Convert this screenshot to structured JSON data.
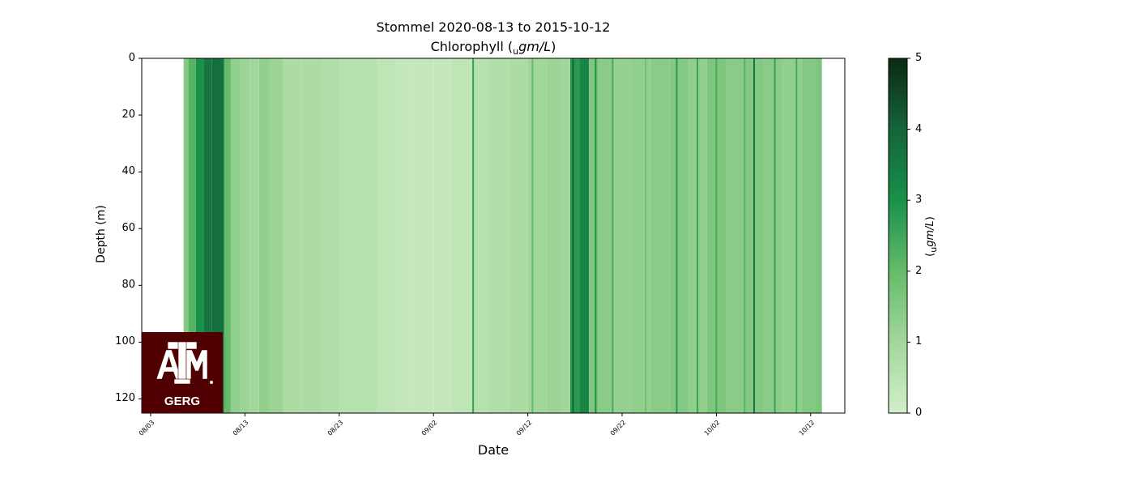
{
  "chart_data": {
    "type": "heatmap",
    "title_line1": "Stommel 2020-08-13 to 2015-10-12",
    "title_line2_prefix": "Chlorophyll (",
    "title_line2_sub": "u",
    "title_line2_unit": "gm/L",
    "title_line2_suffix": ")",
    "xlabel": "Date",
    "ylabel": "Depth (m)",
    "x_tick_labels": [
      "08/03",
      "08/13",
      "08/23",
      "09/02",
      "09/12",
      "09/22",
      "10/02",
      "10/12"
    ],
    "ylim": [
      125,
      0
    ],
    "y_ticks": [
      0,
      20,
      40,
      60,
      80,
      100,
      120
    ],
    "colorbar": {
      "label_prefix": "(",
      "label_sub": "u",
      "label_unit": "gm/L",
      "label_suffix": ")",
      "range": [
        0,
        5
      ],
      "ticks": [
        0,
        1,
        2,
        3,
        4,
        5
      ],
      "colormap": "Greens",
      "low_color": "#c7e9c0",
      "high_color": "#0b2a12"
    },
    "data_start_day": 3.5,
    "data_end_day": 71.2,
    "column_values": [
      {
        "day": 3.5,
        "v": 1.5
      },
      {
        "day": 4.0,
        "v": 2.2
      },
      {
        "day": 4.8,
        "v": 3.0
      },
      {
        "day": 5.6,
        "v": 3.6
      },
      {
        "day": 6.5,
        "v": 3.8
      },
      {
        "day": 7.3,
        "v": 3.7
      },
      {
        "day": 7.8,
        "v": 2.0
      },
      {
        "day": 8.5,
        "v": 1.3
      },
      {
        "day": 9.5,
        "v": 1.1
      },
      {
        "day": 10.5,
        "v": 1.0
      },
      {
        "day": 11.5,
        "v": 1.3
      },
      {
        "day": 12.5,
        "v": 1.1
      },
      {
        "day": 14,
        "v": 0.8
      },
      {
        "day": 16,
        "v": 0.8
      },
      {
        "day": 18,
        "v": 0.7
      },
      {
        "day": 20,
        "v": 0.6
      },
      {
        "day": 22,
        "v": 0.6
      },
      {
        "day": 24,
        "v": 0.4
      },
      {
        "day": 26,
        "v": 0.3
      },
      {
        "day": 28,
        "v": 0.3
      },
      {
        "day": 30,
        "v": 0.3
      },
      {
        "day": 32,
        "v": 0.4
      },
      {
        "day": 34,
        "v": 0.6
      },
      {
        "day": 36,
        "v": 0.7
      },
      {
        "day": 38,
        "v": 0.8
      },
      {
        "day": 40,
        "v": 1.0
      },
      {
        "day": 42,
        "v": 1.1
      },
      {
        "day": 43.5,
        "v": 1.0
      },
      {
        "day": 44.5,
        "v": 2.8
      },
      {
        "day": 45.5,
        "v": 3.3
      },
      {
        "day": 46.5,
        "v": 1.6
      },
      {
        "day": 47.5,
        "v": 1.4
      },
      {
        "day": 49,
        "v": 1.2
      },
      {
        "day": 51,
        "v": 1.3
      },
      {
        "day": 53,
        "v": 1.4
      },
      {
        "day": 55,
        "v": 1.5
      },
      {
        "day": 57,
        "v": 1.3
      },
      {
        "day": 59,
        "v": 1.6
      },
      {
        "day": 61,
        "v": 1.4
      },
      {
        "day": 63,
        "v": 1.5
      },
      {
        "day": 65,
        "v": 1.4
      },
      {
        "day": 67,
        "v": 1.3
      },
      {
        "day": 69,
        "v": 1.5
      },
      {
        "day": 70.5,
        "v": 1.6
      }
    ],
    "stripes": [
      {
        "day": 34.2,
        "v": 2.6
      },
      {
        "day": 40.5,
        "v": 2.0
      },
      {
        "day": 44.8,
        "v": 4.0
      },
      {
        "day": 47.2,
        "v": 3.0
      },
      {
        "day": 49.0,
        "v": 2.4
      },
      {
        "day": 52.5,
        "v": 1.8
      },
      {
        "day": 55.8,
        "v": 2.8
      },
      {
        "day": 58.0,
        "v": 2.6
      },
      {
        "day": 60.0,
        "v": 2.4
      },
      {
        "day": 63.0,
        "v": 2.2
      },
      {
        "day": 64.0,
        "v": 3.6
      },
      {
        "day": 66.2,
        "v": 2.6
      },
      {
        "day": 68.5,
        "v": 2.4
      }
    ],
    "logo_text": "GERG"
  }
}
